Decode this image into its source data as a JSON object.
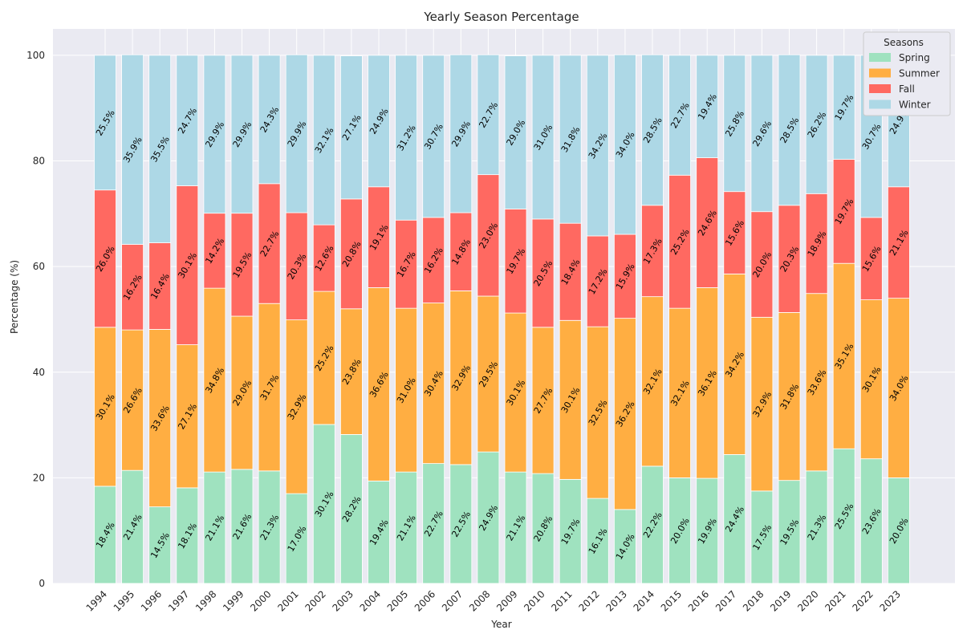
{
  "chart_data": {
    "type": "bar",
    "stacked": true,
    "title": "Yearly Season Percentage",
    "xlabel": "Year",
    "ylabel": "Percentage (%)",
    "ylim": [
      0,
      105
    ],
    "yticks": [
      0,
      20,
      40,
      60,
      80,
      100
    ],
    "grid": true,
    "legend_title": "Seasons",
    "legend_position": "top-right",
    "categories": [
      "1994",
      "1995",
      "1996",
      "1997",
      "1998",
      "1999",
      "2000",
      "2001",
      "2002",
      "2003",
      "2004",
      "2005",
      "2006",
      "2007",
      "2008",
      "2009",
      "2010",
      "2011",
      "2012",
      "2013",
      "2014",
      "2015",
      "2016",
      "2017",
      "2018",
      "2019",
      "2020",
      "2021",
      "2022",
      "2023"
    ],
    "series": [
      {
        "name": "Spring",
        "color": "#9fe2bf",
        "values": [
          18.4,
          21.4,
          14.5,
          18.1,
          21.1,
          21.6,
          21.3,
          17.0,
          30.1,
          28.2,
          19.4,
          21.1,
          22.7,
          22.5,
          24.9,
          21.1,
          20.8,
          19.7,
          16.1,
          14.0,
          22.2,
          20.0,
          19.9,
          24.4,
          17.5,
          19.5,
          21.3,
          25.5,
          23.6,
          20.0
        ],
        "labels": [
          "18.4%",
          "21.4%",
          "14.5%",
          "18.1%",
          "21.1%",
          "21.6%",
          "21.3%",
          "17.0%",
          "30.1%",
          "28.2%",
          "19.4%",
          "21.1%",
          "22.7%",
          "22.5%",
          "24.9%",
          "21.1%",
          "20.8%",
          "19.7%",
          "16.1%",
          "14.0%",
          "22.2%",
          "20.0%",
          "19.9%",
          "24.4%",
          "17.5%",
          "19.5%",
          "21.3%",
          "25.5%",
          "23.6%",
          "20.0%"
        ]
      },
      {
        "name": "Summer",
        "color": "#ffae42",
        "values": [
          30.1,
          26.6,
          33.6,
          27.1,
          34.8,
          29.0,
          31.7,
          32.9,
          25.2,
          23.8,
          36.6,
          31.0,
          30.4,
          32.9,
          29.5,
          30.1,
          27.7,
          30.1,
          32.5,
          36.2,
          32.1,
          32.1,
          36.1,
          34.2,
          32.9,
          31.8,
          33.6,
          35.1,
          30.1,
          34.0
        ],
        "labels": [
          "30.1%",
          "26.6%",
          "33.6%",
          "27.1%",
          "34.8%",
          "29.0%",
          "31.7%",
          "32.9%",
          "25.2%",
          "23.8%",
          "36.6%",
          "31.0%",
          "30.4%",
          "32.9%",
          "29.5%",
          "30.1%",
          "27.7%",
          "30.1%",
          "32.5%",
          "36.2%",
          "32.1%",
          "32.1%",
          "36.1%",
          "34.2%",
          "32.9%",
          "31.8%",
          "33.6%",
          "35.1%",
          "30.1%",
          "34.0%"
        ]
      },
      {
        "name": "Fall",
        "color": "#ff6961",
        "values": [
          26.0,
          16.2,
          16.4,
          30.1,
          14.2,
          19.5,
          22.7,
          20.3,
          12.6,
          20.8,
          19.1,
          16.7,
          16.2,
          14.8,
          23.0,
          19.7,
          20.5,
          18.4,
          17.2,
          15.9,
          17.3,
          25.2,
          24.6,
          15.6,
          20.0,
          20.3,
          18.9,
          19.7,
          15.6,
          21.1
        ],
        "labels": [
          "26.0%",
          "16.2%",
          "16.4%",
          "30.1%",
          "14.2%",
          "19.5%",
          "22.7%",
          "20.3%",
          "12.6%",
          "20.8%",
          "19.1%",
          "16.7%",
          "16.2%",
          "14.8%",
          "23.0%",
          "19.7%",
          "20.5%",
          "18.4%",
          "17.2%",
          "15.9%",
          "17.3%",
          "25.2%",
          "24.6%",
          "15.6%",
          "20.0%",
          "20.3%",
          "18.9%",
          "19.7%",
          "15.6%",
          "21.1%"
        ]
      },
      {
        "name": "Winter",
        "color": "#add8e6",
        "values": [
          25.5,
          35.9,
          35.5,
          24.7,
          29.9,
          29.9,
          24.3,
          29.9,
          32.1,
          27.1,
          24.9,
          31.2,
          30.7,
          29.9,
          22.7,
          29.0,
          31.0,
          31.8,
          34.2,
          34.0,
          28.5,
          22.7,
          19.4,
          25.8,
          29.6,
          28.5,
          26.2,
          19.7,
          30.7,
          24.9
        ],
        "labels": [
          "25.5%",
          "35.9%",
          "35.5%",
          "24.7%",
          "29.9%",
          "29.9%",
          "24.3%",
          "29.9%",
          "32.1%",
          "27.1%",
          "24.9%",
          "31.2%",
          "30.7%",
          "29.9%",
          "22.7%",
          "29.0%",
          "31.0%",
          "31.8%",
          "34.2%",
          "34.0%",
          "28.5%",
          "22.7%",
          "19.4%",
          "25.8%",
          "29.6%",
          "28.5%",
          "26.2%",
          "19.7%",
          "30.7%",
          "24.9%"
        ]
      }
    ]
  }
}
